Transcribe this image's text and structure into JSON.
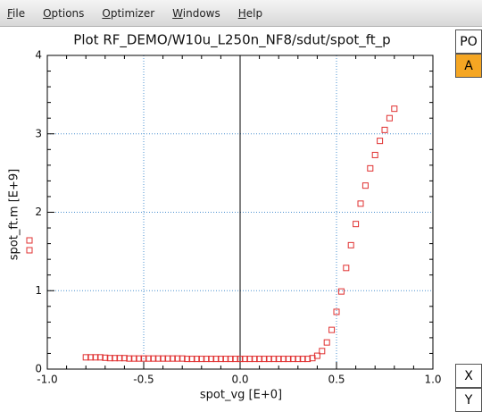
{
  "menu": [
    "File",
    "Options",
    "Optimizer",
    "Windows",
    "Help"
  ],
  "buttons": {
    "top": [
      "PO",
      "A"
    ],
    "bottom": [
      "X",
      "Y"
    ]
  },
  "chart_data": {
    "type": "scatter",
    "title": "Plot RF_DEMO/W10u_L250n_NF8/sdut/spot_ft_p",
    "x_label": "spot_vg  [E+0]",
    "y_label": "spot_ft.m  [E+9]",
    "xlim": [
      -1,
      1
    ],
    "ylim": [
      0,
      4
    ],
    "xticks": [
      {
        "value": -1,
        "label": "-1.0"
      },
      -0.5,
      {
        "value": 0,
        "label": "0.0"
      },
      0.5,
      {
        "value": 1,
        "label": "1.0"
      }
    ],
    "yticks": [
      0,
      1,
      2,
      3,
      4
    ],
    "grid": true,
    "grid_color": "#4a90d0",
    "marker_color": "#e03030",
    "x": [
      -0.8,
      -0.775,
      -0.75,
      -0.725,
      -0.7,
      -0.675,
      -0.65,
      -0.625,
      -0.6,
      -0.575,
      -0.55,
      -0.525,
      -0.5,
      -0.475,
      -0.45,
      -0.425,
      -0.4,
      -0.375,
      -0.35,
      -0.325,
      -0.3,
      -0.275,
      -0.25,
      -0.225,
      -0.2,
      -0.175,
      -0.15,
      -0.125,
      -0.1,
      -0.075,
      -0.05,
      -0.025,
      0,
      0.025,
      0.05,
      0.075,
      0.1,
      0.125,
      0.15,
      0.175,
      0.2,
      0.225,
      0.25,
      0.275,
      0.3,
      0.325,
      0.35,
      0.375,
      0.4,
      0.425,
      0.45,
      0.475,
      0.5,
      0.525,
      0.55,
      0.575,
      0.6,
      0.625,
      0.65,
      0.675,
      0.7,
      0.725,
      0.75,
      0.775,
      0.8
    ],
    "values": [
      0.15,
      0.15,
      0.15,
      0.15,
      0.145,
      0.14,
      0.14,
      0.14,
      0.14,
      0.135,
      0.135,
      0.135,
      0.135,
      0.135,
      0.135,
      0.135,
      0.135,
      0.135,
      0.135,
      0.135,
      0.135,
      0.13,
      0.13,
      0.13,
      0.13,
      0.13,
      0.13,
      0.13,
      0.13,
      0.13,
      0.13,
      0.13,
      0.13,
      0.13,
      0.13,
      0.13,
      0.13,
      0.13,
      0.13,
      0.13,
      0.13,
      0.13,
      0.13,
      0.13,
      0.13,
      0.13,
      0.13,
      0.14,
      0.17,
      0.23,
      0.34,
      0.5,
      0.73,
      0.99,
      1.29,
      1.58,
      1.85,
      2.11,
      2.34,
      2.56,
      2.73,
      2.91,
      3.05,
      3.2,
      3.32
    ]
  }
}
